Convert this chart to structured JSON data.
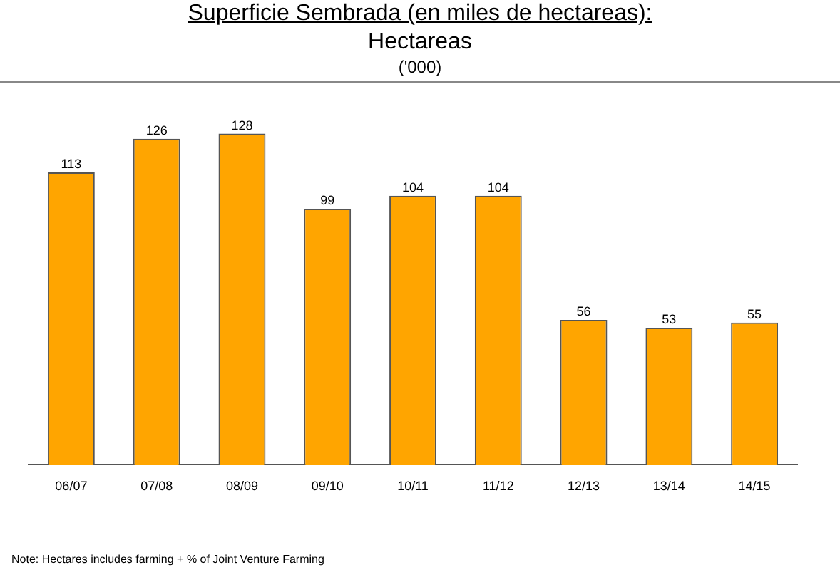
{
  "chart_data": {
    "type": "bar",
    "title": "Superficie Sembrada (en miles de hectareas):",
    "subtitle": "Hectareas",
    "categories": [
      "06/07",
      "07/08",
      "08/09",
      "09/10",
      "10/11",
      "11/12",
      "12/13",
      "13/14",
      "14/15"
    ],
    "values": [
      113,
      126,
      128,
      99,
      104,
      104,
      56,
      53,
      55
    ],
    "color": "#ffa500",
    "data_labels": true,
    "grid": false,
    "legend": false,
    "annotations": [
      "('000)",
      "Note: Hectares includes farming + % of Joint Venture Farming"
    ]
  }
}
